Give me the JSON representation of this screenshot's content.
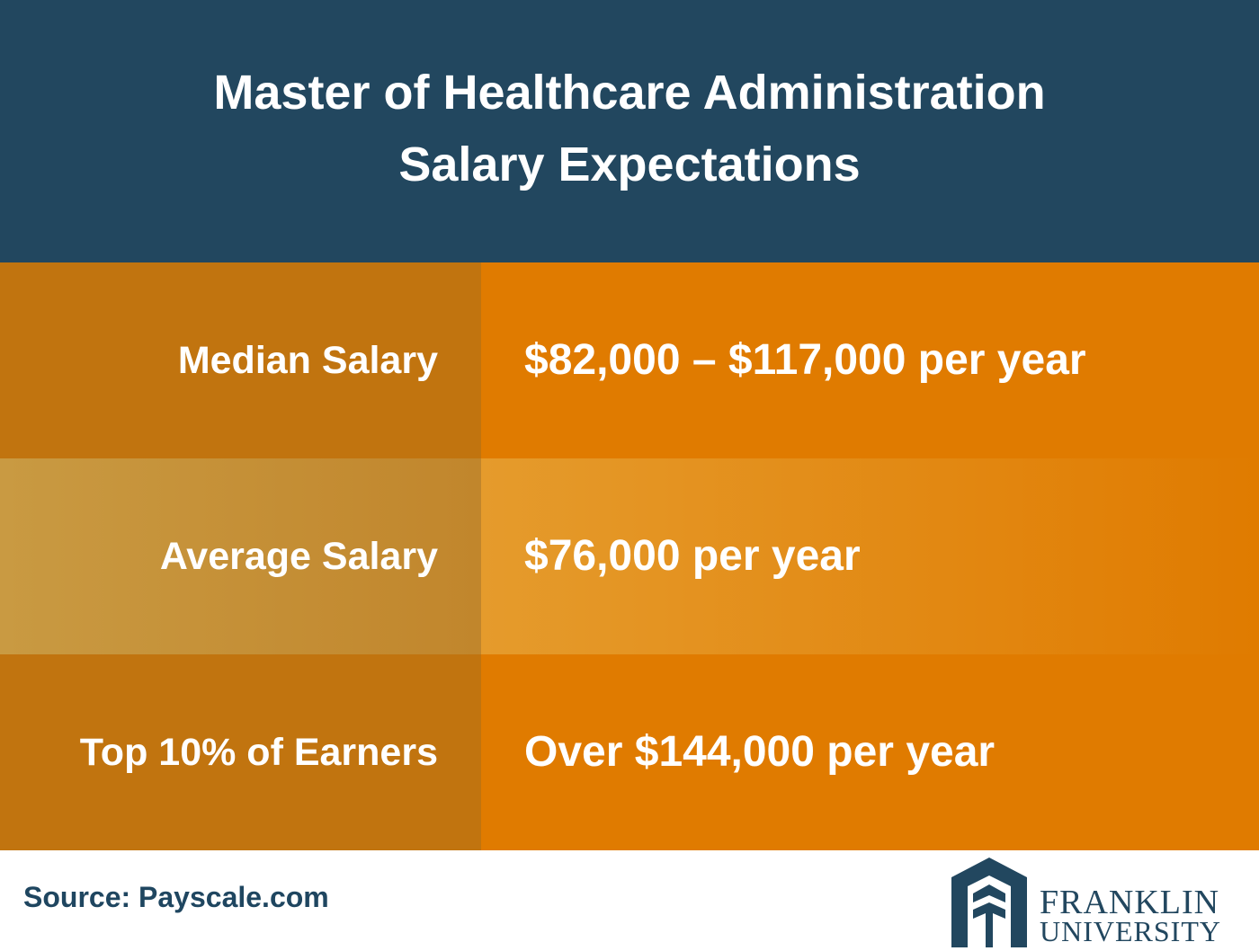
{
  "header": {
    "title_lines": [
      "Master of Healthcare Administration",
      "Salary Expectations"
    ]
  },
  "table": {
    "rows": [
      [
        "Median Salary",
        "$82,000 – $117,000 per year"
      ],
      [
        "Average Salary",
        "$76,000 per year"
      ],
      [
        "Top 10% of Earners",
        "Over $144,000 per year"
      ]
    ]
  },
  "footer": {
    "source": "Source: Payscale.com",
    "logo_lines": [
      "FRANKLIN",
      "UNIVERSITY"
    ]
  }
}
